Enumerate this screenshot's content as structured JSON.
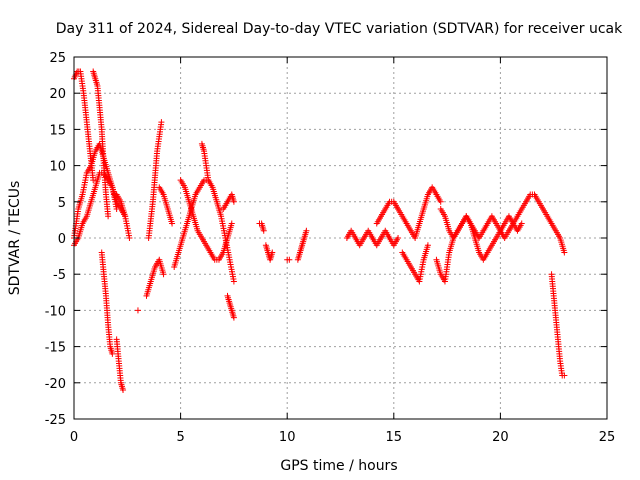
{
  "chart_data": {
    "type": "scatter",
    "title": "Day 311 of 2024, Sidereal Day-to-day VTEC variation (SDTVAR) for receiver ucak",
    "xlabel": "GPS time / hours",
    "ylabel": "SDTVAR / TECUs",
    "xlim": [
      0,
      25
    ],
    "ylim": [
      -25,
      25
    ],
    "xticks": [
      0,
      5,
      10,
      15,
      20,
      25
    ],
    "yticks": [
      -25,
      -20,
      -15,
      -10,
      -5,
      0,
      5,
      10,
      15,
      20,
      25
    ],
    "grid": true,
    "marker": "+",
    "marker_color": "#ff0000",
    "series": [
      {
        "name": "SDTVAR",
        "segments": [
          {
            "x": [
              0.0,
              0.2,
              0.4,
              0.6,
              0.8,
              1.0,
              1.2,
              1.4,
              1.6,
              1.8,
              2.0
            ],
            "y": [
              0,
              4,
              6,
              9,
              10,
              12,
              13,
              11,
              9,
              7,
              4
            ]
          },
          {
            "x": [
              0.0,
              0.15,
              0.3,
              0.45,
              0.6,
              0.75,
              0.9
            ],
            "y": [
              22,
              23,
              23,
              20,
              16,
              12,
              8
            ]
          },
          {
            "x": [
              0.9,
              1.0,
              1.1,
              1.2,
              1.3,
              1.4,
              1.5,
              1.6
            ],
            "y": [
              23,
              22,
              21,
              18,
              15,
              10,
              6,
              3
            ]
          },
          {
            "x": [
              0.0,
              0.2,
              0.4,
              0.6,
              0.8,
              1.0,
              1.2,
              1.4,
              1.6,
              1.8,
              2.0,
              2.2,
              2.4
            ],
            "y": [
              -1,
              0,
              2,
              3,
              5,
              7,
              9,
              9,
              8,
              7,
              5,
              4,
              3
            ]
          },
          {
            "x": [
              1.3,
              1.4,
              1.5,
              1.6,
              1.7,
              1.8
            ],
            "y": [
              -2,
              -5,
              -8,
              -12,
              -15,
              -16
            ]
          },
          {
            "x": [
              2.0,
              2.1,
              2.2,
              2.3
            ],
            "y": [
              -14,
              -17,
              -20,
              -21
            ]
          },
          {
            "x": [
              2.0,
              2.2,
              2.4,
              2.6
            ],
            "y": [
              6,
              5,
              3,
              0
            ]
          },
          {
            "x": [
              3.0
            ],
            "y": [
              -10
            ]
          },
          {
            "x": [
              3.4,
              3.6,
              3.8,
              4.0,
              4.2
            ],
            "y": [
              -8,
              -6,
              -4,
              -3,
              -5
            ]
          },
          {
            "x": [
              3.5,
              3.7,
              3.9,
              4.1
            ],
            "y": [
              0,
              5,
              12,
              16
            ]
          },
          {
            "x": [
              4.0,
              4.2,
              4.4,
              4.6
            ],
            "y": [
              7,
              6,
              4,
              2
            ]
          },
          {
            "x": [
              4.7,
              4.9,
              5.1,
              5.3,
              5.5,
              5.7,
              5.9,
              6.1,
              6.3,
              6.5,
              6.7,
              6.9,
              7.1,
              7.3,
              7.5
            ],
            "y": [
              -4,
              -2,
              0,
              2,
              4,
              6,
              7,
              8,
              8,
              7,
              5,
              3,
              0,
              -3,
              -6
            ]
          },
          {
            "x": [
              5.0,
              5.2,
              5.4,
              5.6,
              5.8,
              6.0,
              6.2,
              6.4,
              6.6,
              6.8,
              7.0,
              7.2,
              7.4
            ],
            "y": [
              8,
              7,
              5,
              3,
              1,
              0,
              -1,
              -2,
              -3,
              -3,
              -2,
              0,
              2
            ]
          },
          {
            "x": [
              6.0,
              6.1,
              6.2,
              6.3
            ],
            "y": [
              13,
              12,
              10,
              8
            ]
          },
          {
            "x": [
              7.2,
              7.3,
              7.4,
              7.5
            ],
            "y": [
              -8,
              -9,
              -10,
              -11
            ]
          },
          {
            "x": [
              7.0,
              7.2,
              7.4,
              7.5
            ],
            "y": [
              4,
              5,
              6,
              5
            ]
          },
          {
            "x": [
              8.7,
              8.8,
              8.9
            ],
            "y": [
              2,
              2,
              1
            ]
          },
          {
            "x": [
              9.0,
              9.1,
              9.2,
              9.3
            ],
            "y": [
              -1,
              -2,
              -3,
              -2
            ]
          },
          {
            "x": [
              10.0,
              10.1
            ],
            "y": [
              -3,
              -3
            ]
          },
          {
            "x": [
              10.5,
              10.6,
              10.7,
              10.8,
              10.9
            ],
            "y": [
              -3,
              -2,
              -1,
              0,
              1
            ]
          },
          {
            "x": [
              12.8,
              13.0,
              13.2,
              13.4,
              13.6,
              13.8,
              14.0,
              14.2,
              14.4,
              14.6,
              14.8,
              15.0,
              15.2
            ],
            "y": [
              0,
              1,
              0,
              -1,
              0,
              1,
              0,
              -1,
              0,
              1,
              0,
              -1,
              0
            ]
          },
          {
            "x": [
              14.2,
              14.4,
              14.6,
              14.8,
              15.0,
              15.2,
              15.4,
              15.6,
              15.8,
              16.0,
              16.2,
              16.4,
              16.6,
              16.8,
              17.0,
              17.2
            ],
            "y": [
              2,
              3,
              4,
              5,
              5,
              4,
              3,
              2,
              1,
              0,
              2,
              4,
              6,
              7,
              6,
              5
            ]
          },
          {
            "x": [
              15.4,
              15.6,
              15.8,
              16.0,
              16.2,
              16.4,
              16.6
            ],
            "y": [
              -2,
              -3,
              -4,
              -5,
              -6,
              -3,
              -1
            ]
          },
          {
            "x": [
              17.0,
              17.2,
              17.4,
              17.6,
              17.8,
              18.0,
              18.2,
              18.4,
              18.6,
              18.8,
              19.0,
              19.2,
              19.4,
              19.6,
              19.8,
              20.0,
              20.2,
              20.4,
              20.6,
              20.8,
              21.0,
              21.2,
              21.4,
              21.6,
              21.8,
              22.0,
              22.2,
              22.4,
              22.6,
              22.8,
              23.0
            ],
            "y": [
              -3,
              -5,
              -6,
              -2,
              0,
              1,
              2,
              3,
              2,
              1,
              0,
              1,
              2,
              3,
              2,
              1,
              0,
              1,
              2,
              3,
              4,
              5,
              6,
              6,
              5,
              4,
              3,
              2,
              1,
              0,
              -2
            ]
          },
          {
            "x": [
              17.2,
              17.4,
              17.6,
              17.8,
              18.0,
              18.2,
              18.4,
              18.6,
              18.8,
              19.0,
              19.2,
              19.4,
              19.6,
              19.8,
              20.0,
              20.2,
              20.4,
              20.6,
              20.8,
              21.0
            ],
            "y": [
              4,
              3,
              1,
              0,
              1,
              2,
              3,
              2,
              0,
              -2,
              -3,
              -2,
              -1,
              0,
              1,
              2,
              3,
              2,
              1,
              2
            ]
          },
          {
            "x": [
              22.4,
              22.5,
              22.6,
              22.7,
              22.8,
              22.9,
              23.0
            ],
            "y": [
              -5,
              -8,
              -11,
              -14,
              -17,
              -19,
              -19
            ]
          }
        ]
      }
    ]
  }
}
